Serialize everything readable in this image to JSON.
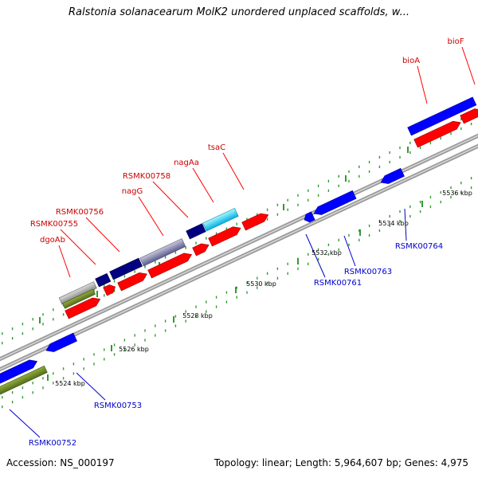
{
  "title": "Ralstonia solanacearum MolK2 unordered unplaced scaffolds, w...",
  "footer": {
    "accession": "Accession: NS_000197",
    "summary": "Topology: linear; Length: 5,964,607 bp; Genes: 4,975"
  },
  "colors": {
    "forward_cds": "#ff0000",
    "reverse_cds": "#0000ff",
    "forward_label": "#cc0000",
    "reverse_label": "#0000cc",
    "backbone": "#999999",
    "tick": "#339933",
    "rna_green": "#6b8e23",
    "rna_navy": "#000080",
    "rna_gray": "#999999",
    "rna_cyan": "#00bfff"
  },
  "scale_labels": [
    "5524 kbp",
    "5526 kbp",
    "5528 kbp",
    "5530 kbp",
    "5532 kbp",
    "5534 kbp",
    "5536 kbp"
  ],
  "forward_gene_labels": [
    "dgoAb",
    "RSMK00755",
    "RSMK00756",
    "nagG",
    "RSMK00758",
    "nagAa",
    "tsaC",
    "bioA",
    "bioF"
  ],
  "reverse_gene_labels": [
    "RSMK00752",
    "RSMK00753",
    "RSMK00761",
    "RSMK00763",
    "RSMK00764"
  ]
}
